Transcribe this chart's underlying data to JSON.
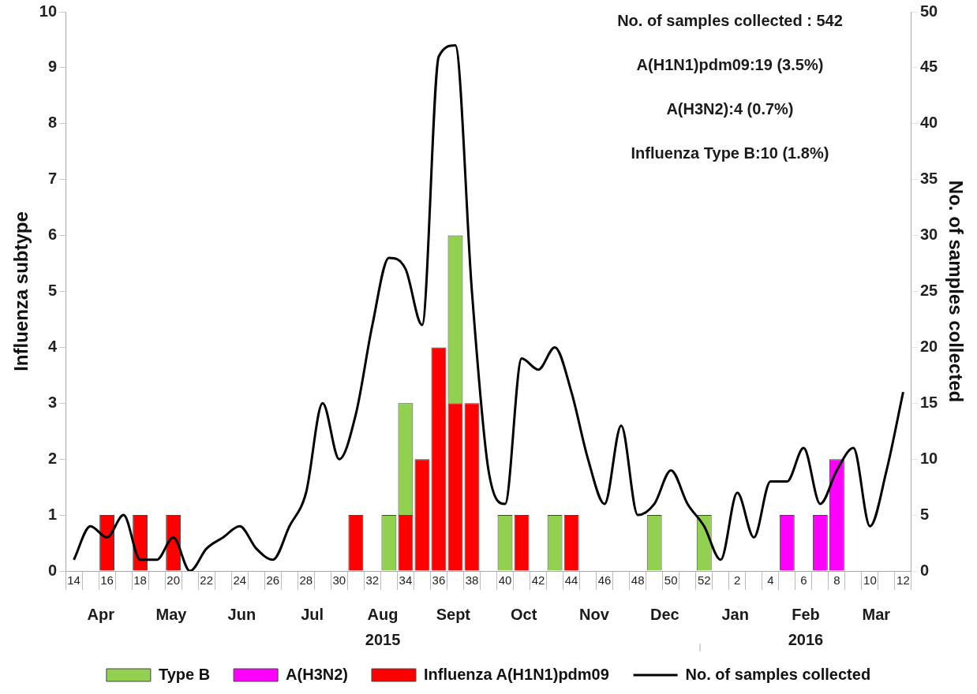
{
  "chart_data": {
    "type": "bar",
    "stacked": true,
    "ylabel": "Influenza subtype",
    "y2label": "No. of samples collected",
    "categories": [
      "14",
      null,
      "16",
      null,
      "18",
      null,
      "20",
      null,
      "22",
      null,
      "24",
      null,
      "26",
      null,
      "28",
      null,
      "30",
      null,
      "32",
      null,
      "34",
      null,
      "36",
      null,
      "38",
      null,
      "40",
      null,
      "42",
      null,
      "44",
      null,
      "46",
      null,
      "48",
      null,
      "50",
      null,
      "52",
      null,
      "2",
      null,
      "4",
      null,
      "6",
      null,
      "8",
      null,
      "10",
      null,
      "12"
    ],
    "series": [
      {
        "name": "Influenza A(H1N1)pdm09",
        "color": "#ff0000",
        "values": [
          null,
          null,
          1,
          null,
          1,
          null,
          1,
          null,
          null,
          null,
          null,
          null,
          null,
          null,
          null,
          null,
          null,
          1,
          null,
          null,
          1,
          2,
          4,
          3,
          3,
          null,
          null,
          1,
          null,
          null,
          1,
          null,
          null,
          null,
          null,
          null,
          null,
          null,
          null,
          null,
          null,
          null,
          null,
          null,
          null,
          null,
          null,
          null,
          null,
          null,
          null
        ]
      },
      {
        "name": "A(H3N2)",
        "color": "#ff00ff",
        "values": [
          null,
          null,
          null,
          null,
          null,
          null,
          null,
          null,
          null,
          null,
          null,
          null,
          null,
          null,
          null,
          null,
          null,
          null,
          null,
          null,
          null,
          null,
          null,
          null,
          null,
          null,
          null,
          null,
          null,
          null,
          null,
          null,
          null,
          null,
          null,
          null,
          null,
          null,
          null,
          null,
          null,
          null,
          null,
          1,
          null,
          1,
          2,
          null,
          null,
          null,
          null
        ]
      },
      {
        "name": "Type B",
        "color": "#92d050",
        "values": [
          null,
          null,
          null,
          null,
          null,
          null,
          null,
          null,
          null,
          null,
          null,
          null,
          null,
          null,
          null,
          null,
          null,
          null,
          null,
          1,
          2,
          null,
          null,
          3,
          null,
          null,
          1,
          null,
          null,
          1,
          null,
          null,
          null,
          null,
          null,
          1,
          null,
          null,
          1,
          null,
          null,
          null,
          null,
          null,
          null,
          null,
          null,
          null,
          null,
          null,
          null
        ]
      },
      {
        "name": "No. of samples collected",
        "type": "line",
        "axis": "y2",
        "color": "#000000",
        "values": [
          1,
          4,
          3,
          5,
          1,
          1,
          3,
          0,
          2,
          3,
          4,
          2,
          1,
          4,
          7,
          15,
          10,
          14,
          22,
          28,
          27,
          22,
          46,
          47,
          25,
          9,
          6,
          19,
          18,
          20,
          16,
          10,
          6,
          13,
          5,
          6,
          9,
          6,
          4,
          1,
          7,
          3,
          8,
          8,
          11,
          6,
          9,
          11,
          4,
          9,
          16
        ]
      }
    ],
    "ylim": [
      0,
      10
    ],
    "yticks": [
      0,
      1,
      2,
      3,
      4,
      5,
      6,
      7,
      8,
      9,
      10
    ],
    "y2lim": [
      0,
      50
    ],
    "y2ticks": [
      0,
      5,
      10,
      15,
      20,
      25,
      30,
      35,
      40,
      45,
      50
    ],
    "grid": false,
    "legend": "bottom",
    "marker": "none",
    "line_style": "solid",
    "annotations": [
      "No. of samples collected : 542",
      "A(H1N1)pdm09:19 (3.5%)",
      "A(H3N2):4 (0.7%)",
      "Influenza Type B:10 (1.8%)",
      "Apr",
      "May",
      "Jun",
      "Jul",
      "Aug",
      "Sept",
      "Oct",
      "Nov",
      "Dec",
      "Jan",
      "Feb",
      "Mar",
      "2015",
      "2016"
    ]
  }
}
